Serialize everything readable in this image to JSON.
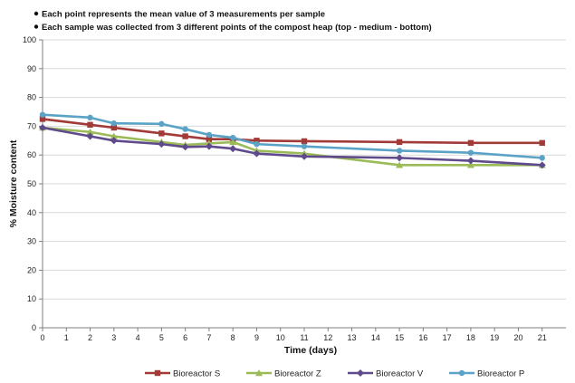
{
  "notes": [
    "Each point represents the mean value of 3 measurements per sample",
    "Each sample was collected from 3 different points of the compost heap (top - medium - bottom)"
  ],
  "chart_data": {
    "type": "line",
    "title": "",
    "xlabel": "Time (days)",
    "ylabel": "% Moisture content",
    "xlim": [
      0,
      22
    ],
    "ylim": [
      0,
      100
    ],
    "x_ticks": [
      0,
      1,
      2,
      3,
      4,
      5,
      6,
      7,
      8,
      9,
      10,
      11,
      12,
      13,
      14,
      15,
      16,
      17,
      18,
      19,
      20,
      21
    ],
    "y_ticks": [
      0,
      10,
      20,
      30,
      40,
      50,
      60,
      70,
      80,
      90,
      100
    ],
    "grid": "horizontal",
    "legend_position": "bottom",
    "series": [
      {
        "name": "Bioreactor S",
        "color": "#A23B37",
        "marker": "square",
        "x": [
          0,
          2,
          3,
          5,
          6,
          7,
          8,
          9,
          11,
          15,
          18,
          21
        ],
        "y": [
          72.5,
          70.5,
          69.5,
          67.5,
          66.5,
          65.5,
          65.5,
          65,
          64.8,
          64.5,
          64.2,
          64.2
        ]
      },
      {
        "name": "Bioreactor Z",
        "color": "#9BBB59",
        "marker": "triangle",
        "x": [
          0,
          2,
          3,
          5,
          6,
          7,
          8,
          9,
          11,
          15,
          18,
          21
        ],
        "y": [
          69.5,
          68,
          66.5,
          64.5,
          63.5,
          64,
          64.5,
          61.5,
          60.5,
          56.5,
          56.5,
          56.5
        ]
      },
      {
        "name": "Bioreactor V",
        "color": "#5F4A8B",
        "marker": "diamond",
        "x": [
          0,
          2,
          3,
          5,
          6,
          7,
          8,
          9,
          11,
          15,
          18,
          21
        ],
        "y": [
          69.5,
          66.5,
          65,
          63.8,
          62.8,
          63,
          62.2,
          60.5,
          59.5,
          59,
          58,
          56.5
        ]
      },
      {
        "name": "Bioreactor P",
        "color": "#5BA3C6",
        "marker": "circle",
        "x": [
          0,
          2,
          3,
          5,
          6,
          7,
          8,
          9,
          11,
          15,
          18,
          21
        ],
        "y": [
          74,
          73,
          71,
          70.8,
          69,
          67,
          66,
          63.8,
          63,
          61.5,
          60.8,
          59
        ]
      }
    ]
  }
}
